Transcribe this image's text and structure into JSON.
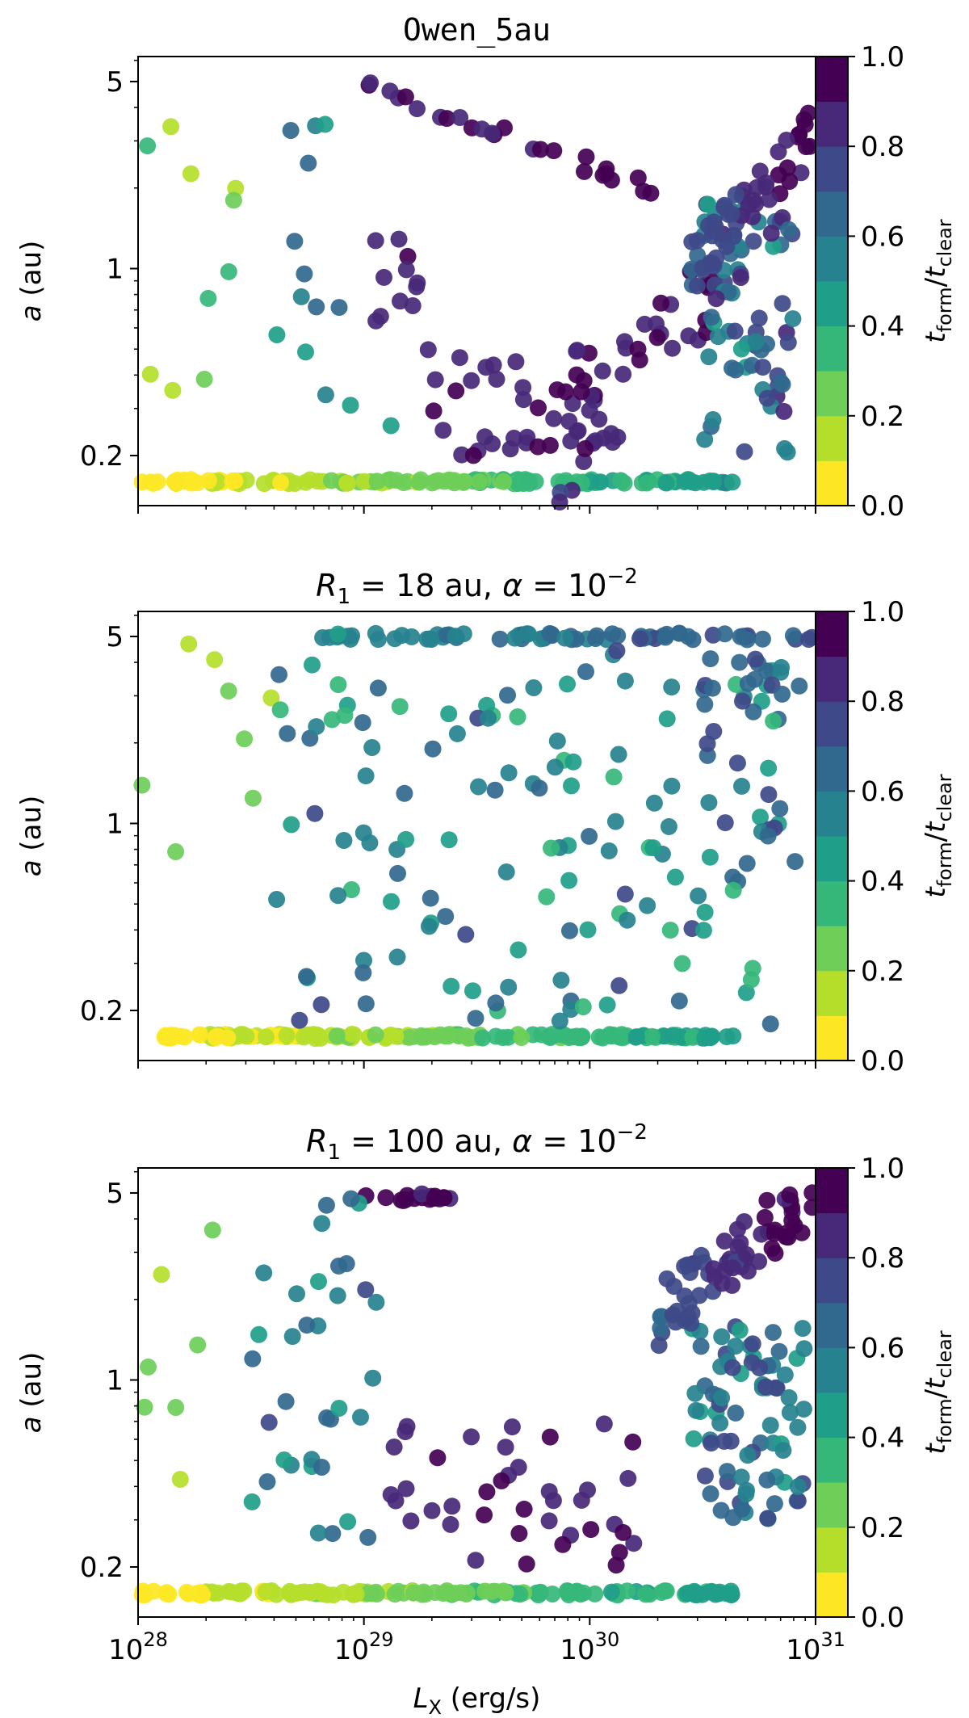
{
  "chart_data": [
    {
      "type": "scatter",
      "title": "Owen_5au",
      "title_style": "mono",
      "xlabel": "",
      "ylabel": "a (au)",
      "xscale": "log",
      "yscale": "log",
      "xlim": [
        1e+28,
        1e+31
      ],
      "ylim": [
        0.13,
        6.2
      ],
      "yticks": [
        {
          "value": 0.2,
          "label": "0.2"
        },
        {
          "value": 1,
          "label": "1"
        },
        {
          "value": 5,
          "label": "5"
        }
      ],
      "colorbar": {
        "label": "tform/tclear",
        "ticks": [
          "0.0",
          "0.2",
          "0.4",
          "0.6",
          "0.8",
          "1.0"
        ],
        "levels": 10
      },
      "seed": 11,
      "clusters": [
        {
          "n": 150,
          "x": [
            28.0,
            30.65
          ],
          "y": [
            0.16,
            0.16
          ],
          "c": [
            0.04,
            0.48
          ],
          "corr": 1,
          "jit": 0.008
        },
        {
          "n": 10,
          "x": [
            28.0,
            28.6
          ],
          "y": [
            0.35,
            4.0
          ],
          "c": [
            0.08,
            0.35
          ]
        },
        {
          "n": 14,
          "x": [
            28.55,
            29.15
          ],
          "y": [
            0.22,
            4.0
          ],
          "c": [
            0.4,
            0.7
          ]
        },
        {
          "n": 26,
          "x": [
            29.0,
            30.3
          ],
          "y": [
            5.0,
            1.95
          ],
          "c": [
            0.88,
            0.97
          ],
          "corr": 1,
          "jit": 0.03
        },
        {
          "n": 12,
          "x": [
            29.05,
            29.3
          ],
          "y": [
            0.4,
            1.9
          ],
          "c": [
            0.82,
            0.92
          ]
        },
        {
          "n": 35,
          "x": [
            29.8,
            30.55
          ],
          "y": [
            0.17,
            0.8
          ],
          "c": [
            0.8,
            0.95
          ],
          "corr": 1,
          "jit": 0.18
        },
        {
          "n": 40,
          "x": [
            29.3,
            30.1
          ],
          "y": [
            0.2,
            0.5
          ],
          "c": [
            0.82,
            0.95
          ]
        },
        {
          "n": 70,
          "x": [
            30.5,
            30.9
          ],
          "y": [
            0.2,
            1.8
          ],
          "c": [
            0.45,
            0.85
          ]
        },
        {
          "n": 55,
          "x": [
            30.45,
            31.0
          ],
          "y": [
            1.0,
            3.3
          ],
          "c": [
            0.7,
            0.98
          ],
          "corr": 1,
          "jit": 0.1
        }
      ]
    },
    {
      "type": "scatter",
      "title": "R1 = 18 au, α = 10−2",
      "title_parts": {
        "r": "R",
        "sub": "1",
        "mid": " = 18 au, ",
        "alpha": "α",
        "eq": " = 10",
        "sup": "−2"
      },
      "xlabel": "",
      "ylabel": "a (au)",
      "xscale": "log",
      "yscale": "log",
      "xlim": [
        1e+28,
        1e+31
      ],
      "ylim": [
        0.13,
        6.2
      ],
      "yticks": [
        {
          "value": 0.2,
          "label": "0.2"
        },
        {
          "value": 1,
          "label": "1"
        },
        {
          "value": 5,
          "label": "5"
        }
      ],
      "colorbar": {
        "label": "tform/tclear",
        "ticks": [
          "0.0",
          "0.2",
          "0.4",
          "0.6",
          "0.8",
          "1.0"
        ],
        "levels": 10
      },
      "seed": 23,
      "clusters": [
        {
          "n": 150,
          "x": [
            28.1,
            30.65
          ],
          "y": [
            0.16,
            0.16
          ],
          "c": [
            0.04,
            0.46
          ],
          "corr": 1,
          "jit": 0.008
        },
        {
          "n": 70,
          "x": [
            28.8,
            31.0
          ],
          "y": [
            5.0,
            5.0
          ],
          "c": [
            0.5,
            0.75
          ],
          "corr": 1,
          "jit": 0.012
        },
        {
          "n": 8,
          "x": [
            28.0,
            28.6
          ],
          "y": [
            0.4,
            4.8
          ],
          "c": [
            0.12,
            0.3
          ]
        },
        {
          "n": 140,
          "x": [
            28.6,
            30.85
          ],
          "y": [
            0.17,
            4.5
          ],
          "c": [
            0.35,
            0.72
          ]
        },
        {
          "n": 25,
          "x": [
            30.5,
            30.95
          ],
          "y": [
            0.7,
            4.5
          ],
          "c": [
            0.55,
            0.8
          ]
        }
      ]
    },
    {
      "type": "scatter",
      "title": "R1 = 100 au, α = 10−2",
      "title_parts": {
        "r": "R",
        "sub": "1",
        "mid": " = 100 au, ",
        "alpha": "α",
        "eq": " = 10",
        "sup": "−2"
      },
      "xlabel": "LX (erg/s)",
      "ylabel": "a (au)",
      "xscale": "log",
      "yscale": "log",
      "xlim": [
        1e+28,
        1e+31
      ],
      "ylim": [
        0.13,
        6.2
      ],
      "xticks": [
        {
          "value": 1e+28,
          "base": "10",
          "exp": "28"
        },
        {
          "value": 1e+29,
          "base": "10",
          "exp": "29"
        },
        {
          "value": 1e+30,
          "base": "10",
          "exp": "30"
        },
        {
          "value": 1e+31,
          "base": "10",
          "exp": "31"
        }
      ],
      "yticks": [
        {
          "value": 0.2,
          "label": "0.2"
        },
        {
          "value": 1,
          "label": "1"
        },
        {
          "value": 5,
          "label": "5"
        }
      ],
      "colorbar": {
        "label": "tform/tclear",
        "ticks": [
          "0.0",
          "0.2",
          "0.4",
          "0.6",
          "0.8",
          "1.0"
        ],
        "levels": 10
      },
      "seed": 37,
      "clusters": [
        {
          "n": 150,
          "x": [
            28.0,
            30.65
          ],
          "y": [
            0.16,
            0.16
          ],
          "c": [
            0.04,
            0.46
          ],
          "corr": 1,
          "jit": 0.008
        },
        {
          "n": 18,
          "x": [
            29.0,
            29.4
          ],
          "y": [
            4.8,
            4.8
          ],
          "c": [
            0.88,
            0.96
          ],
          "jit": 0.015
        },
        {
          "n": 8,
          "x": [
            28.0,
            28.4
          ],
          "y": [
            0.4,
            5.0
          ],
          "c": [
            0.12,
            0.3
          ]
        },
        {
          "n": 35,
          "x": [
            28.5,
            29.1
          ],
          "y": [
            0.25,
            4.8
          ],
          "c": [
            0.4,
            0.72
          ]
        },
        {
          "n": 40,
          "x": [
            29.1,
            30.2
          ],
          "y": [
            0.2,
            0.7
          ],
          "c": [
            0.8,
            0.96
          ]
        },
        {
          "n": 80,
          "x": [
            30.45,
            30.95
          ],
          "y": [
            0.3,
            1.6
          ],
          "c": [
            0.45,
            0.8
          ]
        },
        {
          "n": 70,
          "x": [
            30.3,
            31.0
          ],
          "y": [
            1.7,
            5.0
          ],
          "c": [
            0.7,
            0.98
          ],
          "corr": 1,
          "jit": 0.12
        }
      ]
    }
  ]
}
